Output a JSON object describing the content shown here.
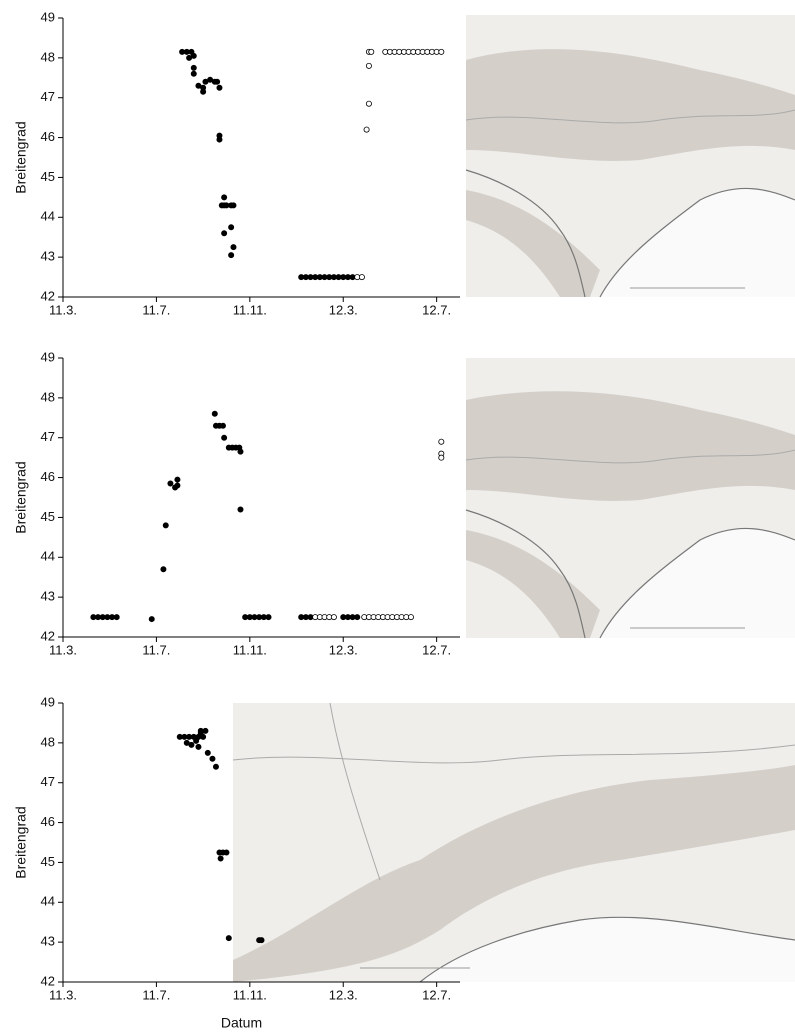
{
  "chart_data": [
    {
      "type": "scatter",
      "ylabel": "Breitengrad",
      "xlim": [
        3,
        20
      ],
      "ylim": [
        42,
        49
      ],
      "xticks": [
        {
          "value": 3,
          "label": "11.3."
        },
        {
          "value": 7,
          "label": "11.7."
        },
        {
          "value": 11,
          "label": "11.11."
        },
        {
          "value": 15,
          "label": "12.3."
        },
        {
          "value": 19,
          "label": "12.7."
        }
      ],
      "yticks": [
        42,
        43,
        44,
        45,
        46,
        47,
        48,
        49
      ],
      "series": [
        {
          "color": "#000000",
          "edgecolor": "#000000",
          "x": [
            8.1,
            8.3,
            8.5,
            8.6,
            8.4,
            8.6,
            8.6,
            8.8,
            9.0,
            9.0,
            9.1,
            9.3,
            9.5,
            9.6,
            9.7,
            9.7,
            9.7,
            9.8,
            9.9,
            10.0,
            10.2,
            10.3,
            9.9,
            9.9,
            10.2,
            10.3,
            10.2,
            13.2,
            13.4,
            13.6,
            13.8,
            14.0,
            14.2,
            14.4,
            14.6,
            14.8,
            15.0,
            15.2,
            15.4
          ],
          "values": [
            48.15,
            48.15,
            48.15,
            48.05,
            48.0,
            47.75,
            47.6,
            47.3,
            47.25,
            47.15,
            47.4,
            47.45,
            47.4,
            47.4,
            47.25,
            46.05,
            45.95,
            44.3,
            44.3,
            44.3,
            44.3,
            44.3,
            44.5,
            43.6,
            43.75,
            43.25,
            43.05,
            42.5,
            42.5,
            42.5,
            42.5,
            42.5,
            42.5,
            42.5,
            42.5,
            42.5,
            42.5,
            42.5,
            42.5
          ]
        },
        {
          "color": "#ffffff",
          "edgecolor": "#000000",
          "x": [
            15.6,
            15.8,
            16.1,
            16.2,
            16.1,
            16.1,
            16.0,
            16.8,
            17.0,
            17.2,
            17.4,
            17.6,
            17.8,
            18.0,
            18.2,
            18.4,
            18.6,
            18.8,
            19.0,
            19.2
          ],
          "values": [
            42.5,
            42.5,
            48.15,
            48.15,
            47.8,
            46.85,
            46.2,
            48.15,
            48.15,
            48.15,
            48.15,
            48.15,
            48.15,
            48.15,
            48.15,
            48.15,
            48.15,
            48.15,
            48.15,
            48.15
          ]
        }
      ]
    },
    {
      "type": "scatter",
      "ylabel": "Breitengrad",
      "xlim": [
        3,
        20
      ],
      "ylim": [
        42,
        49
      ],
      "xticks": [
        {
          "value": 3,
          "label": "11.3."
        },
        {
          "value": 7,
          "label": "11.7."
        },
        {
          "value": 11,
          "label": "11.11."
        },
        {
          "value": 15,
          "label": "12.3."
        },
        {
          "value": 19,
          "label": "12.7."
        }
      ],
      "yticks": [
        42,
        43,
        44,
        45,
        46,
        47,
        48,
        49
      ],
      "series": [
        {
          "color": "#000000",
          "edgecolor": "#000000",
          "x": [
            4.3,
            4.5,
            4.7,
            4.9,
            5.1,
            5.3,
            6.8,
            7.3,
            7.4,
            7.6,
            7.8,
            7.9,
            7.9,
            9.5,
            9.55,
            9.7,
            9.85,
            9.9,
            10.1,
            10.25,
            10.4,
            10.55,
            10.6,
            10.6,
            10.8,
            11.0,
            11.2,
            11.4,
            11.6,
            11.8,
            13.2,
            13.4,
            13.6,
            15.0,
            15.2,
            15.4,
            15.6
          ],
          "values": [
            42.5,
            42.5,
            42.5,
            42.5,
            42.5,
            42.5,
            42.45,
            43.7,
            44.8,
            45.85,
            45.75,
            45.8,
            45.95,
            47.6,
            47.3,
            47.3,
            47.3,
            47.0,
            46.75,
            46.75,
            46.75,
            46.75,
            46.65,
            45.2,
            42.5,
            42.5,
            42.5,
            42.5,
            42.5,
            42.5,
            42.5,
            42.5,
            42.5,
            42.5,
            42.5,
            42.5,
            42.5
          ]
        },
        {
          "color": "#ffffff",
          "edgecolor": "#000000",
          "x": [
            13.8,
            14.0,
            14.2,
            14.4,
            14.6,
            15.9,
            16.1,
            16.3,
            16.5,
            16.7,
            16.9,
            17.1,
            17.3,
            17.5,
            17.7,
            17.9,
            19.2,
            19.2,
            19.2
          ],
          "values": [
            42.5,
            42.5,
            42.5,
            42.5,
            42.5,
            42.5,
            42.5,
            42.5,
            42.5,
            42.5,
            42.5,
            42.5,
            42.5,
            42.5,
            42.5,
            42.5,
            46.9,
            46.6,
            46.5
          ]
        }
      ]
    },
    {
      "type": "scatter",
      "ylabel": "Breitengrad",
      "xlabel": "Datum",
      "xlim": [
        3,
        20
      ],
      "ylim": [
        42,
        49
      ],
      "xticks": [
        {
          "value": 3,
          "label": "11.3."
        },
        {
          "value": 7,
          "label": "11.7."
        },
        {
          "value": 11,
          "label": "11.11."
        },
        {
          "value": 15,
          "label": "12.3."
        },
        {
          "value": 19,
          "label": "12.7."
        }
      ],
      "yticks": [
        42,
        43,
        44,
        45,
        46,
        47,
        48,
        49
      ],
      "series": [
        {
          "color": "#000000",
          "edgecolor": "#000000",
          "x": [
            8.0,
            8.2,
            8.4,
            8.6,
            8.8,
            9.0,
            8.3,
            8.5,
            8.7,
            8.9,
            8.9,
            9.1,
            8.8,
            9.2,
            9.4,
            9.55,
            9.7,
            9.85,
            10.0,
            9.75,
            10.1,
            11.4,
            11.5
          ],
          "values": [
            48.15,
            48.15,
            48.15,
            48.15,
            48.15,
            48.15,
            48.0,
            47.95,
            48.05,
            48.3,
            48.25,
            48.3,
            47.9,
            47.75,
            47.6,
            47.4,
            45.25,
            45.25,
            45.25,
            45.1,
            43.1,
            43.05,
            43.05
          ]
        }
      ]
    }
  ]
}
